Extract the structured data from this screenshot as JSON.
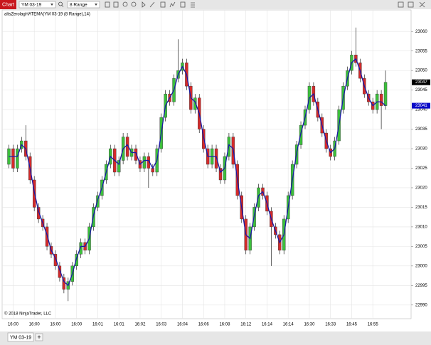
{
  "window": {
    "tab": "Chart",
    "instrument": "YM 03-19",
    "period": "8 Range",
    "bottom_tab": "YM 03-19",
    "add_tab": "+"
  },
  "chart_data": {
    "type": "candlestick",
    "indicator_label": "altsZerolagHATEMA(YM 03-19 (8 Range),14)",
    "copyright": "© 2018 NinjaTrader, LLC",
    "x": [
      null,
      "16:00",
      null,
      null,
      null,
      null,
      "16:00",
      null,
      null,
      null,
      null,
      "16:00",
      null,
      null,
      null,
      null,
      "16:00",
      null,
      null,
      null,
      null,
      "16:01",
      null,
      null,
      null,
      null,
      "16:01",
      null,
      null,
      null,
      null,
      "16:02",
      null,
      null,
      null,
      null,
      "16:03",
      null,
      null,
      null,
      null,
      "16:04",
      null,
      null,
      null,
      null,
      "16:06",
      null,
      null,
      null,
      null,
      "16:08",
      null,
      null,
      null,
      null,
      "16:12",
      null,
      null,
      null,
      null,
      "16:14",
      null,
      null,
      null,
      null,
      "16:14",
      null,
      null,
      null,
      null,
      "16:30",
      null,
      null,
      null,
      null,
      "16:33",
      null,
      null,
      null,
      null,
      "16:45",
      null,
      null,
      null,
      null,
      "16:55",
      null,
      null,
      null
    ],
    "open": [
      23026,
      23030,
      23025,
      23030,
      23032,
      23028,
      23022,
      23015,
      23012,
      23010,
      23005,
      23003,
      23000,
      22997,
      22994,
      22996,
      23000,
      23003,
      23006,
      23004,
      23010,
      23015,
      23018,
      23022,
      23026,
      23030,
      23024,
      23027,
      23033,
      23028,
      23030,
      23027,
      23025,
      23028,
      23025,
      23024,
      23030,
      23038,
      23044,
      23042,
      23048,
      23050,
      23052,
      23046,
      23040,
      23043,
      23035,
      23030,
      23026,
      23030,
      23025,
      23022,
      23028,
      23033,
      23026,
      23018,
      23012,
      23004,
      23010,
      23015,
      23020,
      23018,
      23014,
      23010,
      23008,
      23004,
      23012,
      23018,
      23026,
      23031,
      23036,
      23040,
      23046,
      23042,
      23038,
      23034,
      23030,
      23028,
      23032,
      23040,
      23046,
      23050,
      23054,
      23052,
      23048,
      23044,
      23042,
      23040,
      23044,
      23041
    ],
    "high": [
      23031,
      23031,
      23031,
      23033,
      23036,
      23029,
      23023,
      23016,
      23013,
      23011,
      23006,
      23004,
      23001,
      22998,
      22997,
      23001,
      23004,
      23007,
      23007,
      23011,
      23016,
      23019,
      23023,
      23027,
      23031,
      23031,
      23028,
      23034,
      23034,
      23031,
      23031,
      23028,
      23029,
      23029,
      23026,
      23031,
      23039,
      23045,
      23045,
      23049,
      23058,
      23053,
      23053,
      23047,
      23044,
      23044,
      23036,
      23031,
      23031,
      23031,
      23026,
      23029,
      23034,
      23034,
      23027,
      23019,
      23013,
      23011,
      23016,
      23021,
      23021,
      23019,
      23015,
      23011,
      23009,
      23013,
      23019,
      23027,
      23032,
      23037,
      23041,
      23047,
      23047,
      23043,
      23039,
      23035,
      23031,
      23033,
      23041,
      23047,
      23051,
      23055,
      23061,
      23053,
      23049,
      23045,
      23043,
      23045,
      23045,
      23050
    ],
    "low": [
      23025,
      23024,
      23024,
      23029,
      23027,
      23021,
      23014,
      23011,
      23009,
      23004,
      23002,
      22999,
      22996,
      22993,
      22991,
      22995,
      22999,
      23002,
      23003,
      23003,
      23009,
      23014,
      23017,
      23021,
      23025,
      23023,
      23023,
      23026,
      23027,
      23027,
      23026,
      23024,
      23024,
      23020,
      23023,
      23023,
      23029,
      23037,
      23041,
      23041,
      23047,
      23049,
      23045,
      23039,
      23039,
      23034,
      23029,
      23025,
      23025,
      23024,
      23021,
      23021,
      23027,
      23025,
      23017,
      23011,
      23003,
      23003,
      23009,
      23014,
      23017,
      23013,
      23000,
      23007,
      23003,
      23003,
      23011,
      23017,
      23025,
      23030,
      23035,
      23039,
      23041,
      23037,
      23033,
      23029,
      23027,
      23027,
      23031,
      23039,
      23045,
      23049,
      23051,
      23047,
      23043,
      23041,
      23039,
      23039,
      23035,
      23040
    ],
    "close": [
      23030,
      23025,
      23030,
      23032,
      23028,
      23022,
      23015,
      23012,
      23010,
      23005,
      23003,
      23000,
      22997,
      22994,
      22996,
      23000,
      23003,
      23006,
      23004,
      23010,
      23015,
      23018,
      23022,
      23026,
      23030,
      23024,
      23027,
      23033,
      23028,
      23030,
      23027,
      23025,
      23028,
      23025,
      23024,
      23030,
      23038,
      23044,
      23042,
      23048,
      23050,
      23052,
      23046,
      23040,
      23043,
      23035,
      23030,
      23026,
      23030,
      23025,
      23022,
      23028,
      23033,
      23026,
      23018,
      23012,
      23004,
      23010,
      23015,
      23020,
      23018,
      23014,
      23010,
      23008,
      23004,
      23012,
      23018,
      23026,
      23031,
      23036,
      23040,
      23046,
      23042,
      23038,
      23034,
      23030,
      23028,
      23032,
      23040,
      23046,
      23050,
      23054,
      23052,
      23048,
      23044,
      23042,
      23040,
      23044,
      23041,
      23047
    ],
    "up_color": "#3cbf3c",
    "down_color": "#d42a2a",
    "overlay": {
      "color": "#1a1aa6",
      "values": [
        23028,
        23028,
        23028,
        23031,
        23030,
        23025,
        23019,
        23014,
        23011,
        23008,
        23004,
        23002,
        22999,
        22996,
        22995,
        22998,
        23002,
        23005,
        23005,
        23007,
        23013,
        23017,
        23020,
        23024,
        23028,
        23027,
        23026,
        23030,
        23031,
        23029,
        23029,
        23026,
        23027,
        23027,
        23025,
        23027,
        23034,
        23041,
        23043,
        23045,
        23049,
        23051,
        23049,
        23043,
        23042,
        23039,
        23033,
        23028,
        23028,
        23028,
        23024,
        23025,
        23031,
        23030,
        23022,
        23015,
        23008,
        23007,
        23013,
        23018,
        23019,
        23016,
        23012,
        23009,
        23006,
        23008,
        23015,
        23022,
        23029,
        23034,
        23038,
        23043,
        23044,
        23040,
        23036,
        23032,
        23029,
        23030,
        23036,
        23043,
        23048,
        23052,
        23053,
        23050,
        23046,
        23043,
        23041,
        23042,
        23042,
        23041
      ]
    },
    "price_markers": [
      {
        "value": 23047,
        "color": "#000000"
      },
      {
        "value": 23041,
        "color": "#0a0ac8"
      }
    ],
    "ylim": [
      22986.5,
      23065.5
    ],
    "yticks": [
      23060,
      23055,
      23050,
      23045,
      23040,
      23035,
      23030,
      23025,
      23020,
      23015,
      23010,
      23005,
      23000,
      22995,
      22990
    ],
    "grid": true
  }
}
